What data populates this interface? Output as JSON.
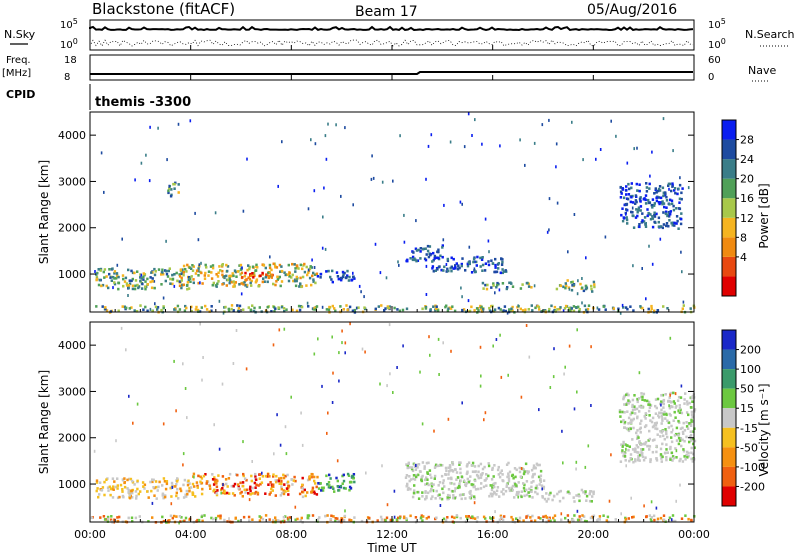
{
  "header": {
    "station": "Blackstone (fitACF)",
    "beam": "Beam 17",
    "date": "05/Aug/2016"
  },
  "nsky_panel": {
    "left_label": "N.Sky",
    "right_label": "N.Search",
    "left_ticks": [
      "10^5",
      "10^0"
    ],
    "right_ticks": [
      "10^5",
      "10^0"
    ]
  },
  "freq_panel": {
    "left_label_line1": "Freq.",
    "left_label_line2": "[MHz]",
    "right_label": "Nave",
    "left_ticks": [
      "18",
      "8"
    ],
    "right_ticks": [
      "60",
      "0"
    ]
  },
  "cpid_panel": {
    "label": "CPID",
    "program": "themis -3300"
  },
  "x_axis": {
    "label": "Time UT",
    "ticks": [
      "00:00",
      "04:00",
      "08:00",
      "12:00",
      "16:00",
      "20:00",
      "00:00"
    ]
  },
  "icons": {
    "power_colorbar": "power-colorbar",
    "velocity_colorbar": "velocity-colorbar"
  },
  "chart_data": [
    {
      "type": "heatmap",
      "name": "power",
      "ylabel": "Slant Range [km]",
      "y_ticks": [
        "4000",
        "3000",
        "2000",
        "1000"
      ],
      "xlim_hours": [
        0,
        24
      ],
      "ylim_km": [
        180,
        4500
      ],
      "colorbar_label": "Power [dB]",
      "colorbar_ticks": [
        "28",
        "24",
        "20",
        "16",
        "12",
        "8",
        "4"
      ],
      "colorbar_colors": [
        "#0a1ef0",
        "#1e4ba0",
        "#3a7d88",
        "#50a058",
        "#a8c84a",
        "#f5b420",
        "#f08a10",
        "#e84810",
        "#e00000"
      ],
      "regions": [
        {
          "t": [
            0.2,
            4.0
          ],
          "r": [
            700,
            1150
          ],
          "level": "mid"
        },
        {
          "t": [
            3.5,
            9.0
          ],
          "r": [
            750,
            1250
          ],
          "level": "high"
        },
        {
          "t": [
            6.0,
            7.5
          ],
          "r": [
            850,
            1050
          ],
          "level": "max"
        },
        {
          "t": [
            9.0,
            10.5
          ],
          "r": [
            850,
            1100
          ],
          "level": "low"
        },
        {
          "t": [
            12.5,
            14.0
          ],
          "r": [
            1300,
            1650
          ],
          "level": "low"
        },
        {
          "t": [
            13.5,
            16.5
          ],
          "r": [
            1050,
            1400
          ],
          "level": "low"
        },
        {
          "t": [
            15.5,
            17.5
          ],
          "r": [
            700,
            850
          ],
          "level": "mid"
        },
        {
          "t": [
            18.5,
            20.0
          ],
          "r": [
            650,
            900
          ],
          "level": "mid"
        },
        {
          "t": [
            3.0,
            3.5
          ],
          "r": [
            2700,
            3000
          ],
          "level": "mid"
        },
        {
          "t": [
            21.0,
            23.5
          ],
          "r": [
            2000,
            3000
          ],
          "level": "low"
        },
        {
          "t": [
            0.0,
            24.0
          ],
          "r": [
            200,
            350
          ],
          "level": "mid"
        }
      ]
    },
    {
      "type": "heatmap",
      "name": "velocity",
      "ylabel": "Slant Range [km]",
      "y_ticks": [
        "4000",
        "3000",
        "2000",
        "1000"
      ],
      "xlim_hours": [
        0,
        24
      ],
      "ylim_km": [
        180,
        4500
      ],
      "colorbar_label": "Velocity [m s⁻¹]",
      "colorbar_ticks": [
        "200",
        "100",
        "50",
        "15",
        "-15",
        "-50",
        "-100",
        "-200"
      ],
      "colorbar_colors": [
        "#1a28c8",
        "#2a6aa8",
        "#3a9a6a",
        "#6cc840",
        "#c8c8c8",
        "#f5c020",
        "#f59010",
        "#f06010",
        "#e00000"
      ],
      "regions": [
        {
          "t": [
            0.2,
            4.0
          ],
          "r": [
            700,
            1150
          ],
          "level": "neg"
        },
        {
          "t": [
            4.0,
            9.0
          ],
          "r": [
            750,
            1250
          ],
          "level": "negstrong"
        },
        {
          "t": [
            9.0,
            10.5
          ],
          "r": [
            850,
            1250
          ],
          "level": "pos"
        },
        {
          "t": [
            12.5,
            18.0
          ],
          "r": [
            700,
            1500
          ],
          "level": "zero"
        },
        {
          "t": [
            18.0,
            20.0
          ],
          "r": [
            650,
            900
          ],
          "level": "zero"
        },
        {
          "t": [
            21.0,
            24.0
          ],
          "r": [
            1500,
            3000
          ],
          "level": "zero"
        },
        {
          "t": [
            0.0,
            24.0
          ],
          "r": [
            200,
            350
          ],
          "level": "mixed"
        }
      ]
    }
  ]
}
